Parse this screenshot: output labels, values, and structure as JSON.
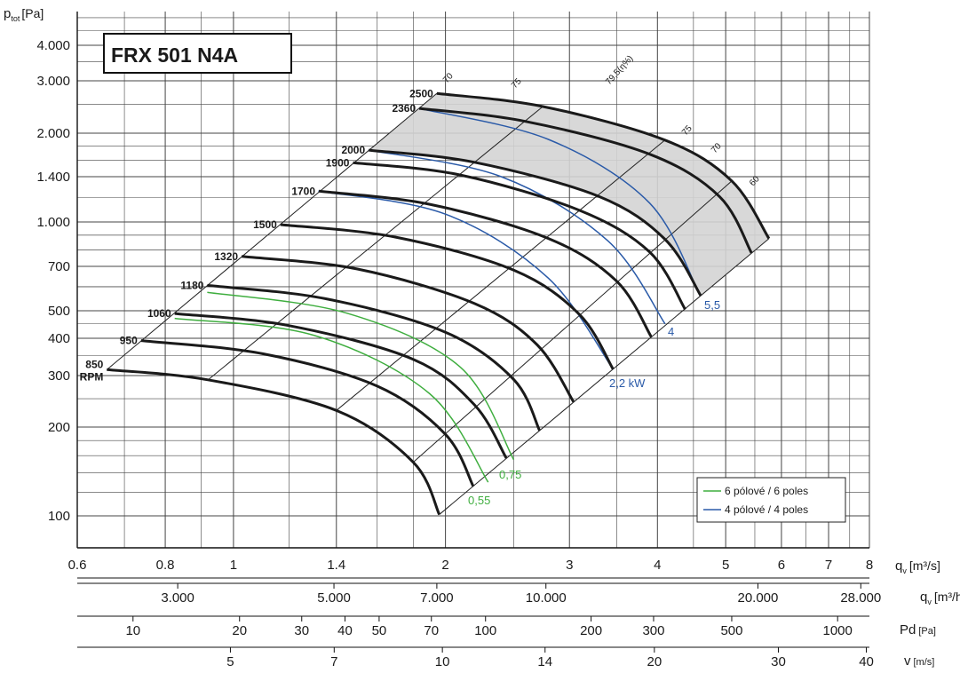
{
  "chart_data": {
    "type": "line",
    "title": "FRX 501 N4A",
    "ylabel_main": "p",
    "ylabel_sub": "tot",
    "ylabel_unit": "[Pa]",
    "y_scale": "log",
    "x_scale": "log",
    "xlim": [
      0.6,
      8
    ],
    "ylim": [
      70,
      5000
    ],
    "y_ticks": [
      {
        "v": 4000,
        "label": "4.000"
      },
      {
        "v": 3000,
        "label": "3.000"
      },
      {
        "v": 2000,
        "label": "2.000"
      },
      {
        "v": 1400,
        "label": "1.400"
      },
      {
        "v": 1000,
        "label": "1.000"
      },
      {
        "v": 700,
        "label": "700"
      },
      {
        "v": 500,
        "label": "500"
      },
      {
        "v": 400,
        "label": "400"
      },
      {
        "v": 300,
        "label": "300"
      },
      {
        "v": 200,
        "label": "200"
      },
      {
        "v": 100,
        "label": "100"
      }
    ],
    "x_ticks": [
      {
        "v": 0.6,
        "label": "0.6"
      },
      {
        "v": 0.8,
        "label": "0.8"
      },
      {
        "v": 1,
        "label": "1"
      },
      {
        "v": 1.4,
        "label": "1.4"
      },
      {
        "v": 2,
        "label": "2"
      },
      {
        "v": 3,
        "label": "3"
      },
      {
        "v": 4,
        "label": "4"
      },
      {
        "v": 5,
        "label": "5"
      },
      {
        "v": 6,
        "label": "6"
      },
      {
        "v": 7,
        "label": "7"
      },
      {
        "v": 8,
        "label": "8"
      }
    ],
    "x_unit_main": "q",
    "x_unit_sub": "v",
    "x_unit": "[m³/s]",
    "secondary_axes": [
      {
        "id": "qv_h",
        "label_main": "q",
        "label_sub": "v",
        "label_unit": "[m³/h]",
        "ticks": [
          {
            "label": "3.000",
            "q": 0.8333
          },
          {
            "label": "5.000",
            "q": 1.3889
          },
          {
            "label": "7.000",
            "q": 1.9444
          },
          {
            "label": "10.000",
            "q": 2.7778
          },
          {
            "label": "20.000",
            "q": 5.5556
          },
          {
            "label": "28.000",
            "q": 7.7778
          }
        ]
      },
      {
        "id": "pd",
        "label_main": "Pd",
        "label_sub": "",
        "label_unit": "[Pa]",
        "ticks": [
          {
            "label": "10",
            "q": 0.72
          },
          {
            "label": "20",
            "q": 1.02
          },
          {
            "label": "30",
            "q": 1.25
          },
          {
            "label": "40",
            "q": 1.44
          },
          {
            "label": "50",
            "q": 1.61
          },
          {
            "label": "70",
            "q": 1.91
          },
          {
            "label": "100",
            "q": 2.28
          },
          {
            "label": "200",
            "q": 3.22
          },
          {
            "label": "300",
            "q": 3.95
          },
          {
            "label": "500",
            "q": 5.1
          },
          {
            "label": "1000",
            "q": 7.21
          }
        ]
      },
      {
        "id": "v",
        "label_main": "v",
        "label_sub": "",
        "label_unit": "[m/s]",
        "ticks": [
          {
            "label": "5",
            "q": 0.99
          },
          {
            "label": "7",
            "q": 1.39
          },
          {
            "label": "10",
            "q": 1.98
          },
          {
            "label": "14",
            "q": 2.77
          },
          {
            "label": "20",
            "q": 3.96
          },
          {
            "label": "30",
            "q": 5.94
          },
          {
            "label": "40",
            "q": 7.92
          }
        ]
      }
    ],
    "fan_curves": [
      {
        "rpm_label": "850",
        "rpm_sub": "RPM",
        "points": [
          [
            0.661,
            314
          ],
          [
            0.92,
            290
          ],
          [
            1.4,
            228
          ],
          [
            1.8,
            152
          ],
          [
            1.96,
            101
          ]
        ]
      },
      {
        "rpm_label": "950",
        "points": [
          [
            0.739,
            393
          ],
          [
            1.1,
            355
          ],
          [
            1.6,
            276
          ],
          [
            2.0,
            189
          ],
          [
            2.19,
            126
          ]
        ]
      },
      {
        "rpm_label": "1060",
        "points": [
          [
            0.825,
            489
          ],
          [
            1.2,
            443
          ],
          [
            1.8,
            340
          ],
          [
            2.2,
            238
          ],
          [
            2.44,
            157
          ]
        ]
      },
      {
        "rpm_label": "1180",
        "points": [
          [
            0.918,
            606
          ],
          [
            1.35,
            548
          ],
          [
            2.0,
            420
          ],
          [
            2.5,
            291
          ],
          [
            2.72,
            195
          ]
        ]
      },
      {
        "rpm_label": "1320",
        "points": [
          [
            1.027,
            758
          ],
          [
            1.5,
            686
          ],
          [
            2.2,
            528
          ],
          [
            2.7,
            380
          ],
          [
            3.04,
            244
          ]
        ]
      },
      {
        "rpm_label": "1500",
        "points": [
          [
            1.166,
            979
          ],
          [
            1.7,
            885
          ],
          [
            2.5,
            680
          ],
          [
            3.1,
            485
          ],
          [
            3.46,
            315
          ]
        ]
      },
      {
        "rpm_label": "1700",
        "points": [
          [
            1.322,
            1257
          ],
          [
            1.9,
            1140
          ],
          [
            2.8,
            876
          ],
          [
            3.5,
            626
          ],
          [
            3.92,
            405
          ]
        ]
      },
      {
        "rpm_label": "1900",
        "points": [
          [
            1.478,
            1570
          ],
          [
            2.1,
            1420
          ],
          [
            3.1,
            1090
          ],
          [
            3.9,
            785
          ],
          [
            4.38,
            505
          ]
        ]
      },
      {
        "rpm_label": "2000",
        "points": [
          [
            1.556,
            1740
          ],
          [
            2.2,
            1575
          ],
          [
            3.3,
            1210
          ],
          [
            4.1,
            870
          ],
          [
            4.61,
            560
          ]
        ]
      },
      {
        "rpm_label": "2360",
        "points": [
          [
            1.836,
            2423
          ],
          [
            2.6,
            2190
          ],
          [
            3.9,
            1683
          ],
          [
            4.9,
            1208
          ],
          [
            5.44,
            780
          ]
        ]
      },
      {
        "rpm_label": "2500",
        "points": [
          [
            1.944,
            2720
          ],
          [
            2.75,
            2458
          ],
          [
            4.1,
            1890
          ],
          [
            5.1,
            1356
          ],
          [
            5.76,
            875
          ]
        ]
      }
    ],
    "shaded_region_between_rpm": [
      "2000",
      "2500"
    ],
    "efficiency_lines": [
      {
        "label": "70",
        "from": [
          0.661,
          314
        ],
        "to": [
          1.944,
          2720
        ]
      },
      {
        "label": "75",
        "from": [
          0.92,
          290
        ],
        "to": [
          2.75,
          2458
        ]
      },
      {
        "label": "79,5(η%)",
        "from": [
          1.4,
          228
        ],
        "to": [
          4.1,
          1890
        ]
      },
      {
        "label": "75",
        "from": [
          1.8,
          152
        ],
        "to": [
          5.1,
          1356
        ]
      },
      {
        "label": "70",
        "from": [
          1.96,
          101
        ],
        "to": [
          5.76,
          875
        ]
      },
      {
        "label": "60",
        "from": [
          1.96,
          101
        ],
        "to": [
          5.76,
          875
        ],
        "hidden_line": true
      }
    ],
    "motor_curves": [
      {
        "label": "2,2 kW",
        "poles": 4,
        "points": [
          [
            1.32,
            1257
          ],
          [
            2.0,
            1060
          ],
          [
            2.8,
            640
          ],
          [
            3.46,
            315
          ]
        ]
      },
      {
        "label": "4",
        "poles": 4,
        "points": [
          [
            1.556,
            1740
          ],
          [
            2.4,
            1400
          ],
          [
            3.4,
            860
          ],
          [
            4.1,
            450
          ]
        ]
      },
      {
        "label": "5,5",
        "poles": 4,
        "points": [
          [
            1.836,
            2423
          ],
          [
            2.8,
            1900
          ],
          [
            3.9,
            1150
          ],
          [
            4.6,
            560
          ]
        ]
      },
      {
        "label": "0,55",
        "poles": 6,
        "points": [
          [
            0.825,
            470
          ],
          [
            1.3,
            410
          ],
          [
            1.9,
            260
          ],
          [
            2.3,
            130
          ]
        ]
      },
      {
        "label": "0,75",
        "poles": 6,
        "points": [
          [
            0.918,
            575
          ],
          [
            1.45,
            490
          ],
          [
            2.1,
            320
          ],
          [
            2.5,
            155
          ]
        ]
      }
    ],
    "legend": {
      "position": "bottom-right",
      "entries": [
        {
          "label": "6 pólové / 6 poles",
          "color": "#3fae3f"
        },
        {
          "label": "4 pólové / 4 poles",
          "color": "#2a5aa8"
        }
      ]
    },
    "colors": {
      "fan": "#1a1a1a",
      "four_pole": "#2a5aa8",
      "six_pole": "#3fae3f",
      "shade": "#d4d4d4",
      "grid": "#444444"
    },
    "grid": true
  }
}
